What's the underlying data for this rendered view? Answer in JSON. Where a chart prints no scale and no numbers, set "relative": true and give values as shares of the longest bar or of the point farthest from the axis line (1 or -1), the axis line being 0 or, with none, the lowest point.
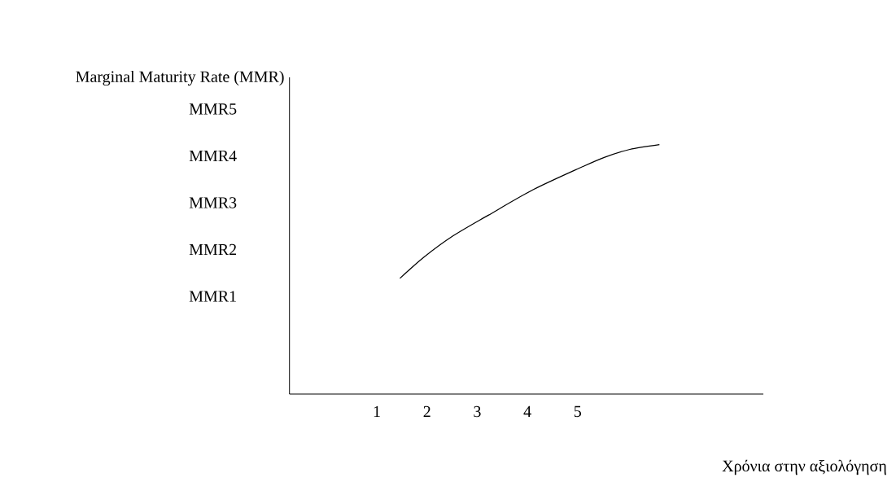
{
  "chart_data": {
    "type": "line",
    "relative": true,
    "xlabel": "Χρόνια στην αξιολόγηση",
    "ylabel": "Marginal Maturity Rate (MMR)",
    "annotations": [
      "MMR5",
      "MMR4",
      "MMR3",
      "MMR2",
      "MMR1"
    ],
    "x": [
      1.46,
      1.94,
      2.51,
      3.22,
      4.12,
      5.08,
      5.53,
      6.04,
      6.63
    ],
    "series": [
      {
        "color": "#000000",
        "values": [
          0.464,
          0.549,
          0.633,
          0.717,
          0.82,
          0.91,
          0.949,
          0.981,
          1
        ]
      }
    ],
    "xlim": [
      -0.74,
      8.7
    ],
    "xticks": [
      1,
      2,
      3,
      4,
      5
    ]
  }
}
